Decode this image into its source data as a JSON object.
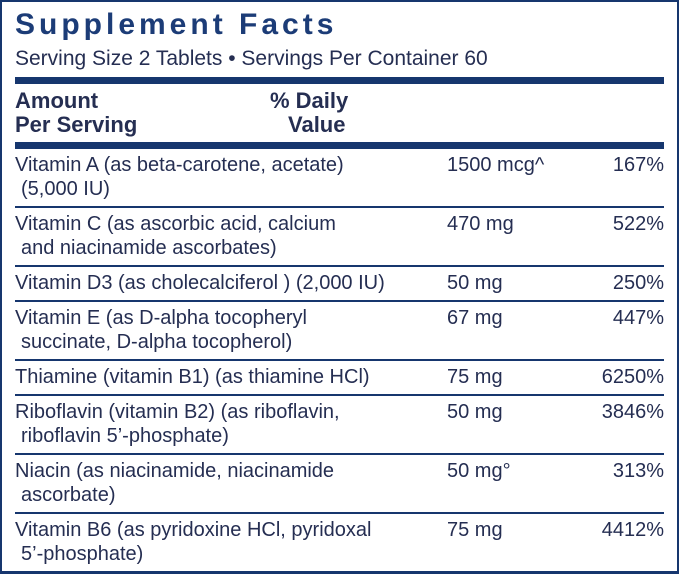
{
  "label": {
    "title": "Supplement Facts",
    "serving_line": "Serving Size 2 Tablets • Servings Per Container 60",
    "columns": {
      "amount_header_line1": "Amount",
      "amount_header_line2": "Per Serving",
      "daily_value_header_line1": "% Daily",
      "daily_value_header_line2": "Value"
    },
    "colors": {
      "navy_rule": "#16366e",
      "body_text": "#252e52",
      "title_text": "#1c3c77"
    },
    "rows": [
      {
        "name1": "Vitamin A (as beta-carotene, acetate)",
        "name2": "(5,000 IU)",
        "amount": "1500 mcg^",
        "dv": "167%"
      },
      {
        "name1": "Vitamin C (as ascorbic acid, calcium",
        "name2": "and niacinamide ascorbates)",
        "amount": "470 mg",
        "dv": "522%"
      },
      {
        "name1": "Vitamin D3 (as cholecalciferol ) (2,000 IU)",
        "name2": "",
        "amount": "50 mg",
        "dv": "250%"
      },
      {
        "name1": "Vitamin E (as D-alpha tocopheryl",
        "name2": "succinate, D-alpha tocopherol)",
        "amount": "67 mg",
        "dv": "447%"
      },
      {
        "name1": "Thiamine (vitamin B1) (as thiamine HCl)",
        "name2": "",
        "amount": "75 mg",
        "dv": "6250%"
      },
      {
        "name1": "Riboflavin (vitamin B2) (as riboflavin,",
        "name2": "riboflavin 5’-phosphate)",
        "amount": "50 mg",
        "dv": "3846%"
      },
      {
        "name1": "Niacin (as niacinamide, niacinamide",
        "name2": "ascorbate)",
        "amount": "50 mg°",
        "dv": "313%"
      },
      {
        "name1": "Vitamin B6 (as pyridoxine HCl, pyridoxal",
        "name2": "5’-phosphate)",
        "amount": "75 mg",
        "dv": "4412%"
      }
    ]
  }
}
